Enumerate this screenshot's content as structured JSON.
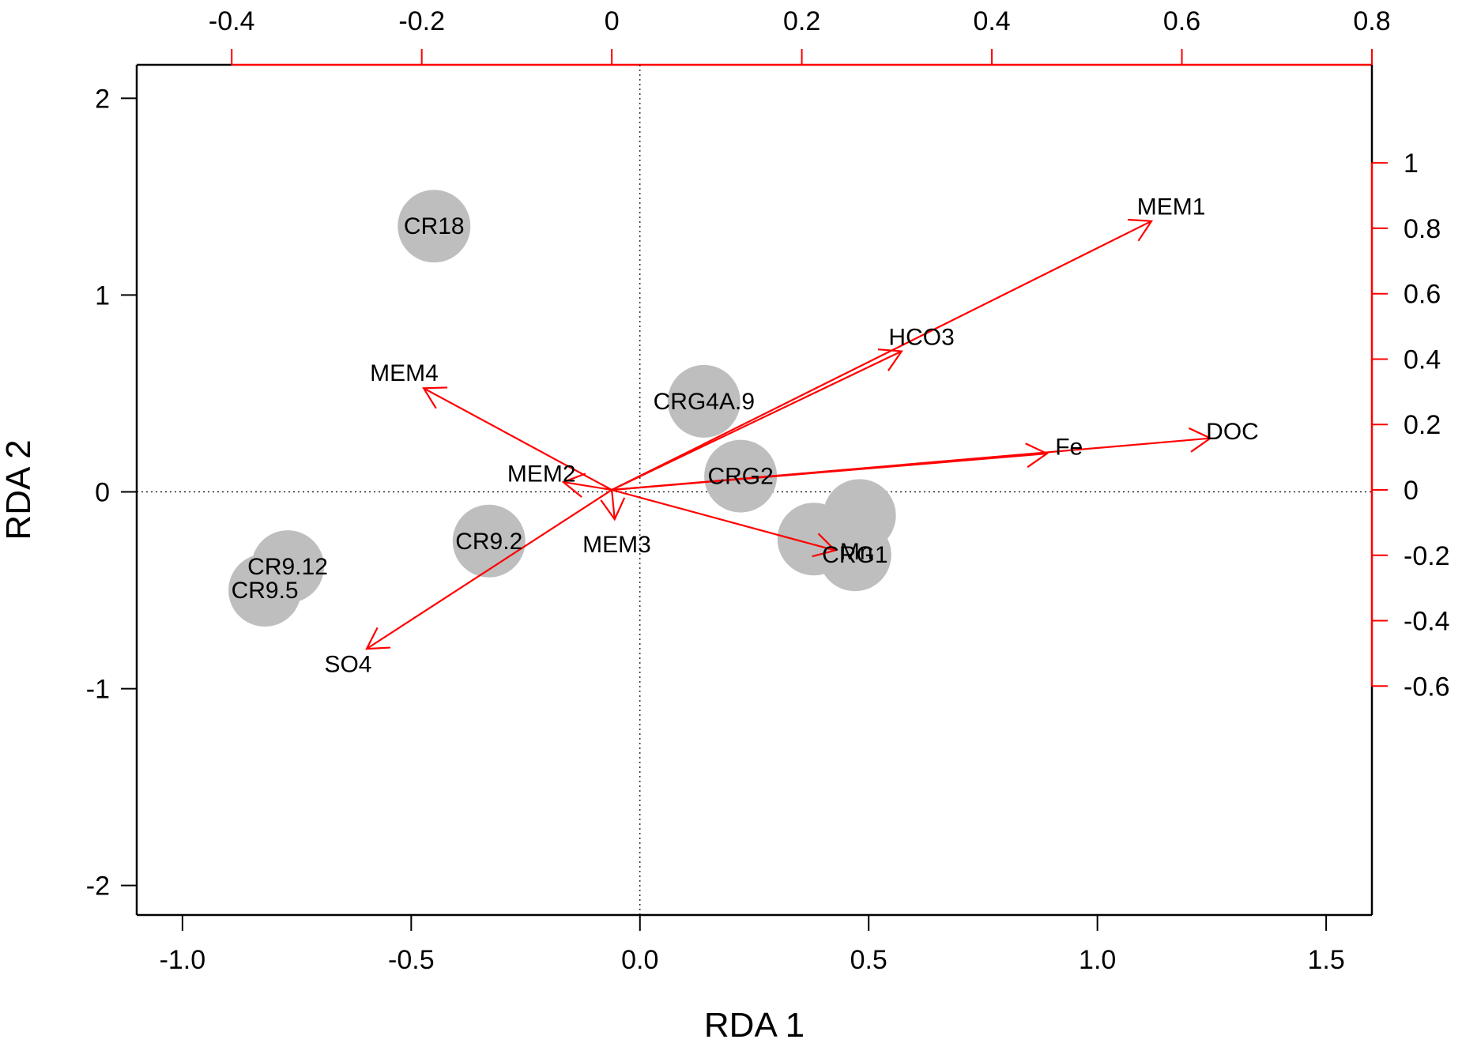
{
  "chart_data": {
    "type": "scatter",
    "title": "",
    "xlabel": "RDA 1",
    "ylabel": "RDA 2",
    "xlim": [
      -1.1,
      1.6
    ],
    "ylim": [
      -2.15,
      2.17
    ],
    "x_ticks": [
      -1.0,
      -0.5,
      0.0,
      0.5,
      1.0,
      1.5
    ],
    "x_tick_labels": [
      "-1.0",
      "-0.5",
      "0.0",
      "0.5",
      "1.0",
      "1.5"
    ],
    "y_ticks": [
      -2,
      -1,
      0,
      1,
      2
    ],
    "y_tick_labels": [
      "-2",
      "-1",
      "0",
      "1",
      "2"
    ],
    "secondary_axes": {
      "color": "#ff0000",
      "top_xlim": [
        -0.5,
        0.8
      ],
      "top_ticks": [
        -0.4,
        -0.2,
        0,
        0.2,
        0.4,
        0.6,
        0.8
      ],
      "top_tick_labels": [
        "-0.4",
        "-0.2",
        "0",
        "0.2",
        "0.4",
        "0.6",
        "0.8"
      ],
      "right_ylim": [
        -1.3,
        1.3
      ],
      "right_ticks": [
        -0.6,
        -0.4,
        -0.2,
        0,
        0.2,
        0.4,
        0.6,
        0.8,
        1
      ],
      "right_tick_labels": [
        "-0.6",
        "-0.4",
        "-0.2",
        "0",
        "0.2",
        "0.4",
        "0.6",
        "0.8",
        "1"
      ]
    },
    "sites": [
      {
        "label": "CR18",
        "x": -0.45,
        "y": 1.35
      },
      {
        "label": "CRG4A.9",
        "x": 0.14,
        "y": 0.46
      },
      {
        "label": "CRG2",
        "x": 0.22,
        "y": 0.08
      },
      {
        "label": "CR9.2",
        "x": -0.33,
        "y": -0.25
      },
      {
        "label": "CR9.12",
        "x": -0.77,
        "y": -0.38
      },
      {
        "label": "CR9.5",
        "x": -0.82,
        "y": -0.5
      },
      {
        "label": "",
        "x": 0.48,
        "y": -0.12
      },
      {
        "label": "",
        "x": 0.38,
        "y": -0.24
      },
      {
        "label": "CRG1",
        "x": 0.47,
        "y": -0.32
      }
    ],
    "vectors": [
      {
        "label": "MEM1",
        "x": 0.568,
        "y": 0.822
      },
      {
        "label": "HCO3",
        "x": 0.305,
        "y": 0.424
      },
      {
        "label": "DOC",
        "x": 0.63,
        "y": 0.158
      },
      {
        "label": "Fe",
        "x": 0.458,
        "y": 0.111
      },
      {
        "label": "MEM4",
        "x": -0.198,
        "y": 0.311
      },
      {
        "label": "MEM2",
        "x": -0.051,
        "y": 0.024
      },
      {
        "label": "MEM3",
        "x": 0.003,
        "y": -0.09
      },
      {
        "label": "Mn",
        "x": 0.235,
        "y": -0.185
      },
      {
        "label": "SO4",
        "x": -0.258,
        "y": -0.486
      }
    ]
  }
}
